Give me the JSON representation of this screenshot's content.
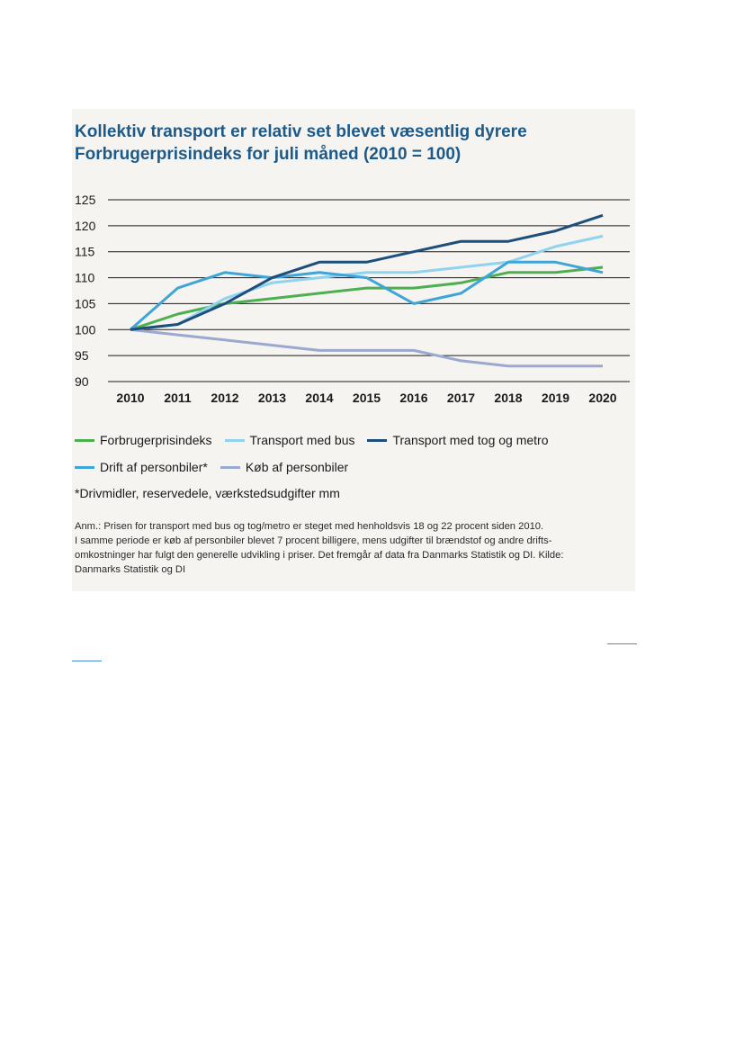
{
  "chart_data": {
    "type": "line",
    "title": "Kollektiv transport er relativ set blevet væsentlig dyrere",
    "subtitle": "Forbrugerprisindeks for juli måned (2010 = 100)",
    "xlabel": "",
    "ylabel": "",
    "x": [
      2010,
      2011,
      2012,
      2013,
      2014,
      2015,
      2016,
      2017,
      2018,
      2019,
      2020
    ],
    "ylim": [
      90,
      125
    ],
    "yticks": [
      90,
      95,
      100,
      105,
      110,
      115,
      120,
      125
    ],
    "grid": true,
    "legend_position": "bottom",
    "series": [
      {
        "name": "Forbrugerprisindeks",
        "color": "#4caf50",
        "values": [
          100,
          103,
          105,
          106,
          107,
          108,
          108,
          109,
          111,
          111,
          112
        ]
      },
      {
        "name": "Transport med bus",
        "color": "#8fd3ee",
        "values": [
          100,
          101,
          106,
          109,
          110,
          111,
          111,
          112,
          113,
          116,
          118
        ]
      },
      {
        "name": "Transport med tog og metro",
        "color": "#1c4f7c",
        "values": [
          100,
          101,
          105,
          110,
          113,
          113,
          115,
          117,
          117,
          119,
          122
        ]
      },
      {
        "name": "Drift af personbiler*",
        "color": "#3fa4d8",
        "values": [
          100,
          108,
          111,
          110,
          111,
          110,
          105,
          107,
          113,
          113,
          111
        ]
      },
      {
        "name": "Køb af personbiler",
        "color": "#9ba8cf",
        "values": [
          100,
          99,
          98,
          97,
          96,
          96,
          96,
          94,
          93,
          93,
          93
        ]
      }
    ],
    "footnote": "*Drivmidler, reservedele, værkstedsudgifter mm",
    "note": [
      "Anm.: Prisen for transport med bus og tog/metro er steget med henholdsvis 18 og 22 procent siden 2010.",
      "I samme periode er køb af personbiler blevet 7 procent billigere, mens udgifter til brændstof og andre drifts-",
      "omkostninger har fulgt den generelle udvikling i priser. Det fremgår af data fra Danmarks Statistik og DI. Kilde:",
      "Danmarks Statistik og DI"
    ]
  }
}
